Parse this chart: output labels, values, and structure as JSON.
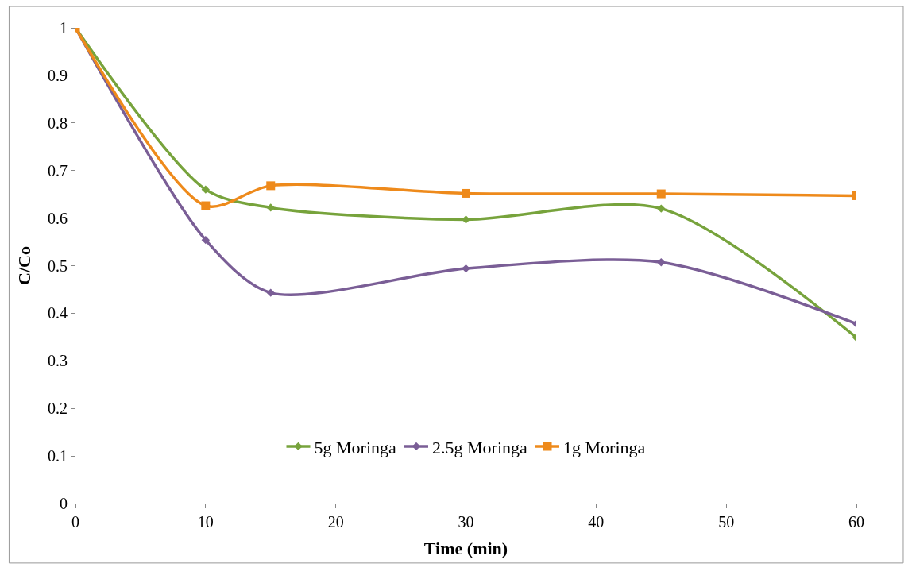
{
  "chart_data": {
    "type": "line",
    "xlabel": "Time (min)",
    "ylabel": "C/Co",
    "x": [
      0,
      10,
      15,
      30,
      45,
      60
    ],
    "series": [
      {
        "name": "5g Moringa",
        "color": "#77a33c",
        "marker": "diamond",
        "values": [
          1,
          0.66,
          0.622,
          0.597,
          0.62,
          0.349
        ]
      },
      {
        "name": "2.5g Moringa",
        "color": "#7a5e96",
        "marker": "diamond",
        "values": [
          1,
          0.554,
          0.443,
          0.494,
          0.507,
          0.378
        ]
      },
      {
        "name": "1g Moringa",
        "color": "#ee8a1b",
        "marker": "square",
        "values": [
          1,
          0.626,
          0.668,
          0.652,
          0.651,
          0.647
        ]
      }
    ],
    "xlim": [
      0,
      60
    ],
    "xticks": [
      0,
      10,
      20,
      30,
      40,
      50,
      60
    ],
    "ylim": [
      0,
      1
    ],
    "yticks": [
      0,
      0.1,
      0.2,
      0.3,
      0.4,
      0.5,
      0.6,
      0.7,
      0.8,
      0.9,
      1
    ],
    "legend": "bottom",
    "line_style": "solid"
  }
}
